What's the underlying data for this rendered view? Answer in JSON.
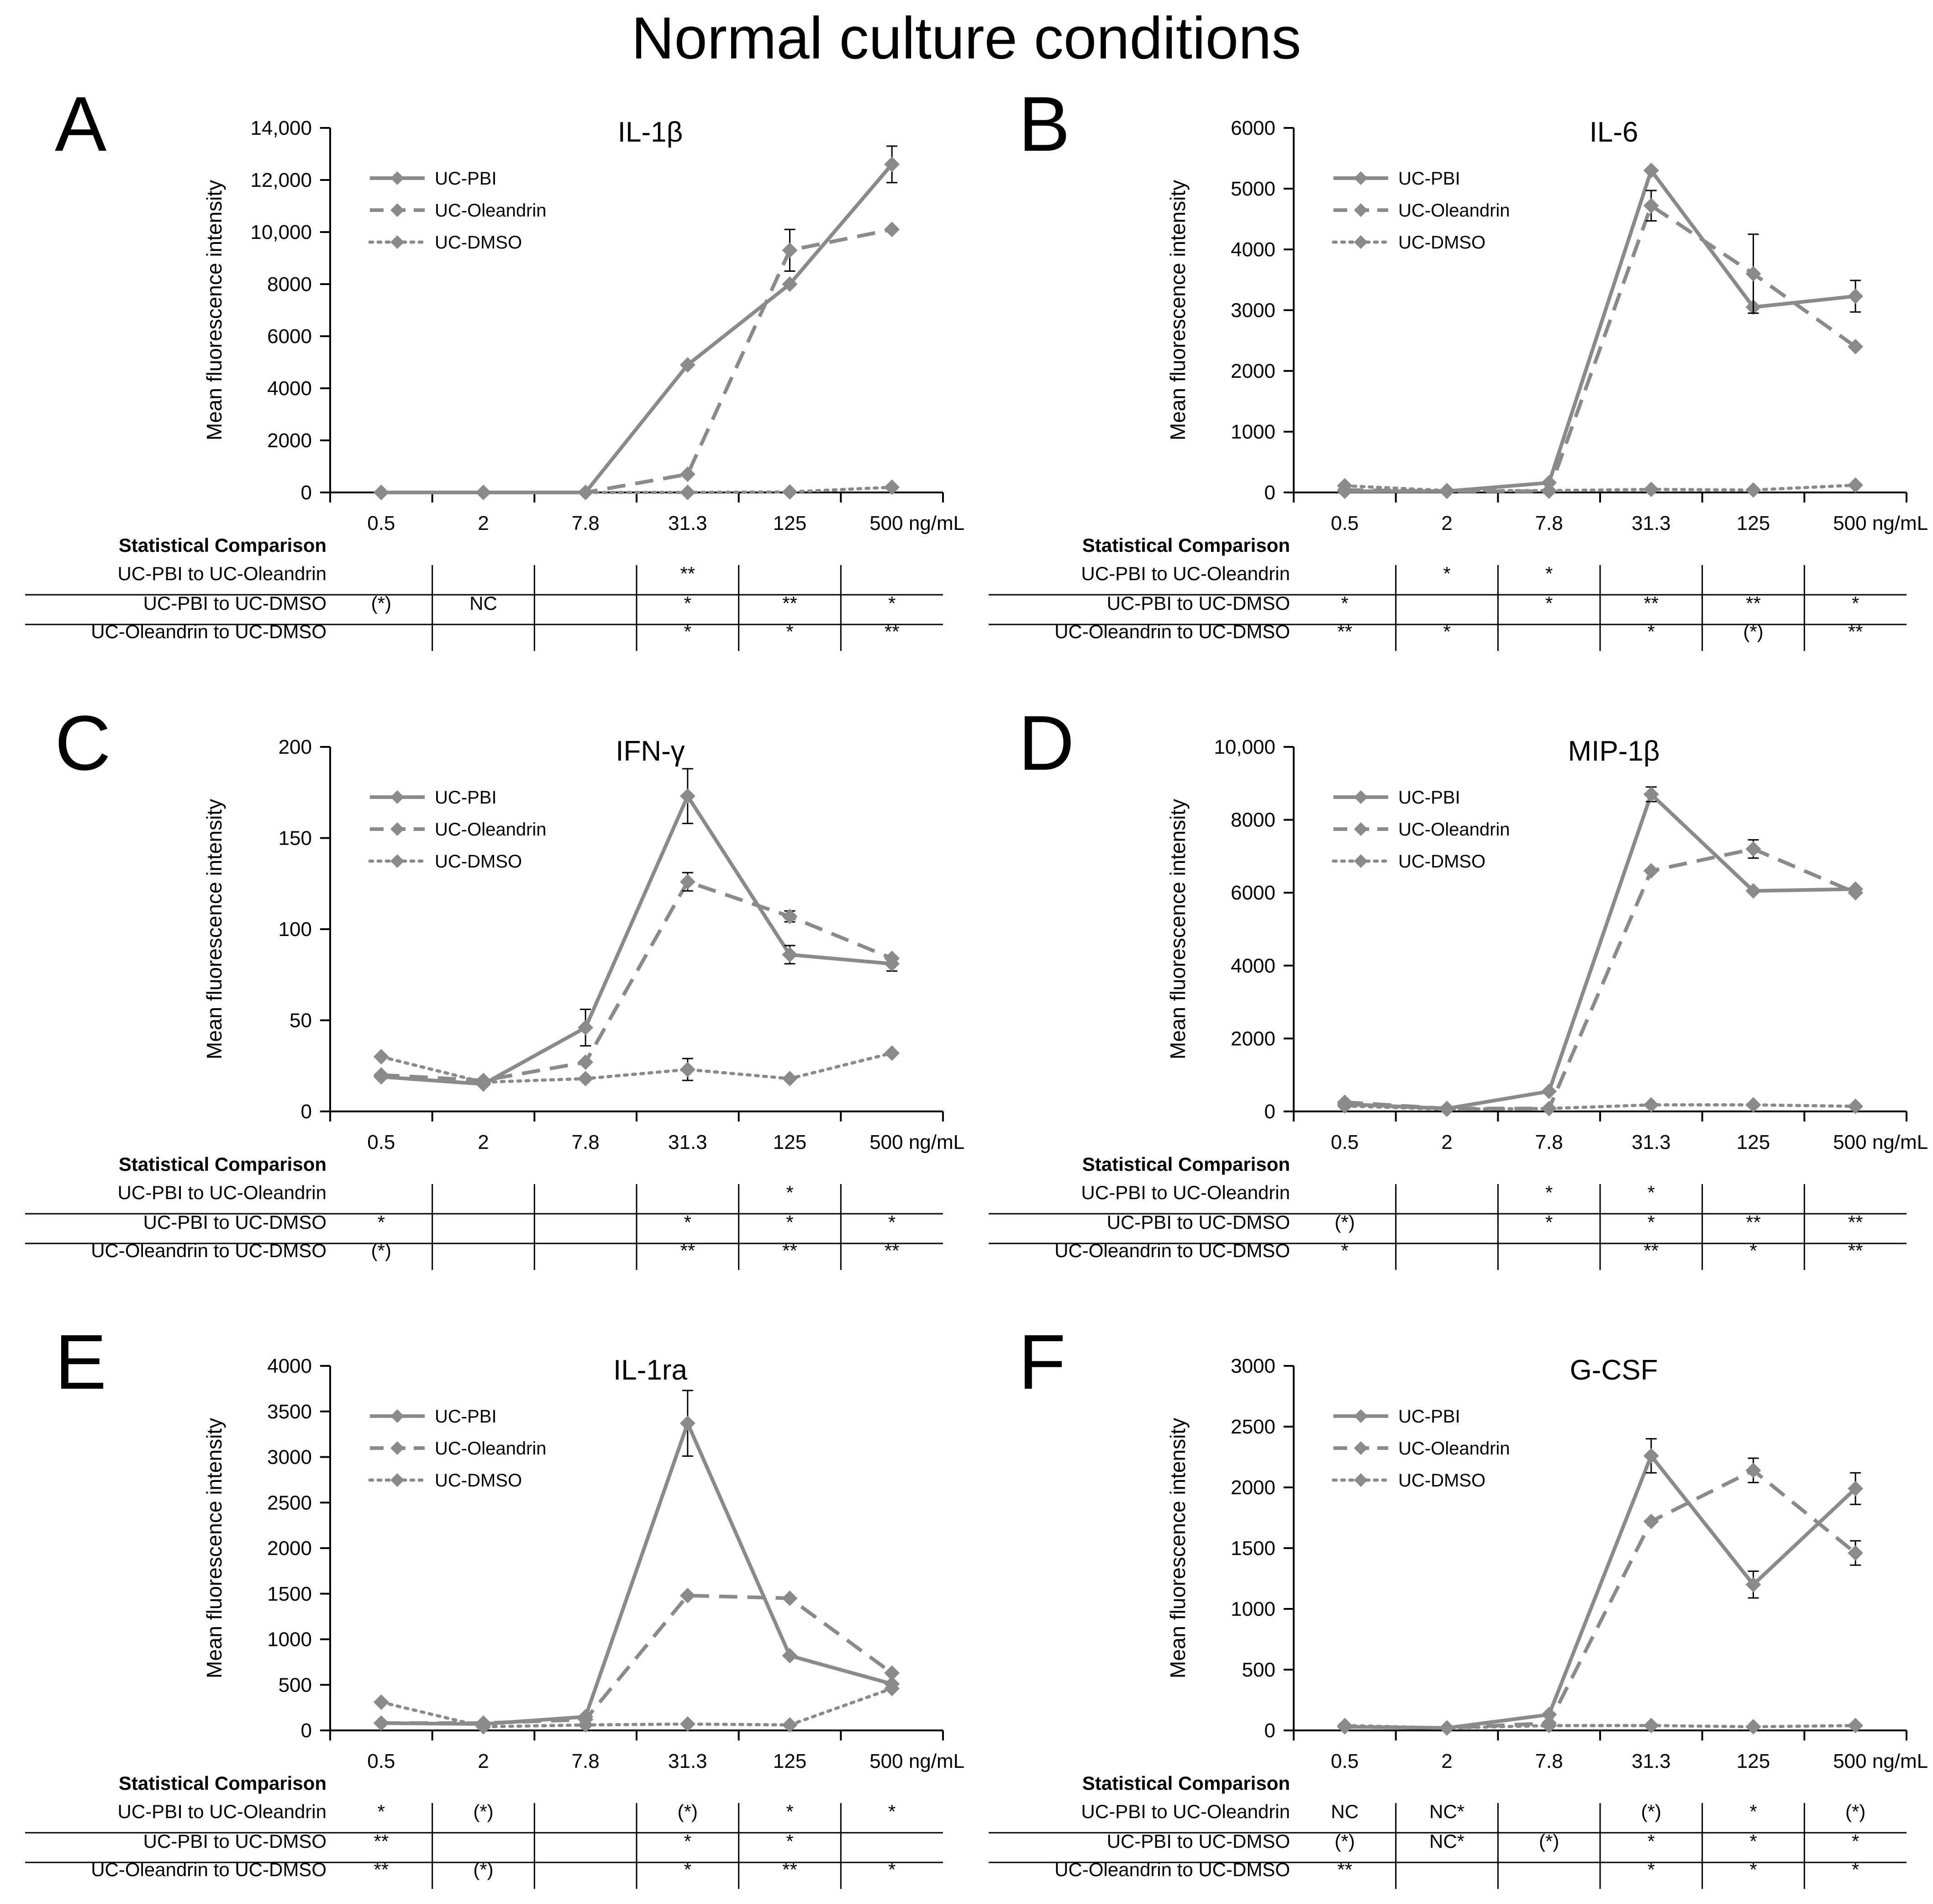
{
  "main_title": "Normal culture conditions",
  "ylabel": "Mean fluorescence intensity",
  "stat_heading": "Statistical Comparison",
  "comparisons": [
    "UC-PBI to UC-Oleandrin",
    "UC-PBI to UC-DMSO",
    "UC-Oleandrin to UC-DMSO"
  ],
  "legend": [
    "UC-PBI",
    "UC-Oleandrin",
    "UC-DMSO"
  ],
  "colors": {
    "series": "#8a8a8a",
    "axis": "#000000"
  },
  "chart_data": [
    {
      "panel": "A",
      "type": "line",
      "title": "IL-1β",
      "categories": [
        "0.5",
        "2",
        "7.8",
        "31.3",
        "125",
        "500 ng/mL"
      ],
      "x": [
        0.5,
        2,
        7.8,
        31.3,
        125,
        500
      ],
      "ylim": [
        0,
        14000
      ],
      "yticks": [
        "0",
        "2000",
        "4000",
        "6000",
        "8000",
        "10,000",
        "12,000",
        "14,000"
      ],
      "series": [
        {
          "name": "UC-PBI",
          "values": [
            0,
            0,
            0,
            4900,
            8000,
            12600
          ],
          "err": [
            0,
            0,
            0,
            0,
            0,
            700
          ]
        },
        {
          "name": "UC-Oleandrin",
          "values": [
            0,
            0,
            0,
            700,
            9300,
            10100
          ],
          "err": [
            0,
            0,
            0,
            0,
            800,
            0
          ]
        },
        {
          "name": "UC-DMSO",
          "values": [
            0,
            0,
            0,
            0,
            20,
            200
          ],
          "err": [
            0,
            0,
            0,
            0,
            0,
            0
          ]
        }
      ],
      "stats": [
        [
          "",
          "",
          "",
          "**",
          "",
          ""
        ],
        [
          "(*)",
          "NC",
          "",
          "*",
          "**",
          "*"
        ],
        [
          "",
          "",
          "",
          "*",
          "*",
          "**"
        ]
      ]
    },
    {
      "panel": "B",
      "type": "line",
      "title": "IL-6",
      "categories": [
        "0.5",
        "2",
        "7.8",
        "31.3",
        "125",
        "500 ng/mL"
      ],
      "x": [
        0.5,
        2,
        7.8,
        31.3,
        125,
        500
      ],
      "ylim": [
        0,
        6000
      ],
      "yticks": [
        "0",
        "1000",
        "2000",
        "3000",
        "4000",
        "5000",
        "6000"
      ],
      "series": [
        {
          "name": "UC-PBI",
          "values": [
            20,
            20,
            160,
            5300,
            3050,
            3230
          ],
          "err": [
            0,
            0,
            0,
            0,
            0,
            260
          ]
        },
        {
          "name": "UC-Oleandrin",
          "values": [
            40,
            20,
            20,
            4720,
            3600,
            2400
          ],
          "err": [
            0,
            0,
            0,
            250,
            650,
            0
          ]
        },
        {
          "name": "UC-DMSO",
          "values": [
            110,
            30,
            30,
            50,
            40,
            120
          ],
          "err": [
            0,
            0,
            0,
            0,
            0,
            0
          ]
        }
      ],
      "stats": [
        [
          "",
          "*",
          "*",
          "",
          "",
          ""
        ],
        [
          "*",
          "",
          "*",
          "**",
          "**",
          "*"
        ],
        [
          "**",
          "*",
          "",
          "*",
          "(*)",
          "**"
        ]
      ]
    },
    {
      "panel": "C",
      "type": "line",
      "title": "IFN-γ",
      "categories": [
        "0.5",
        "2",
        "7.8",
        "31.3",
        "125",
        "500 ng/mL"
      ],
      "x": [
        0.5,
        2,
        7.8,
        31.3,
        125,
        500
      ],
      "ylim": [
        0,
        200
      ],
      "yticks": [
        "0",
        "50",
        "100",
        "150",
        "200"
      ],
      "series": [
        {
          "name": "UC-PBI",
          "values": [
            19,
            15,
            46,
            173,
            86,
            81
          ],
          "err": [
            0,
            0,
            10,
            15,
            5,
            4
          ]
        },
        {
          "name": "UC-Oleandrin",
          "values": [
            20,
            17,
            27,
            126,
            107,
            84
          ],
          "err": [
            0,
            0,
            0,
            5,
            3,
            0
          ]
        },
        {
          "name": "UC-DMSO",
          "values": [
            30,
            16,
            18,
            23,
            18,
            32
          ],
          "err": [
            0,
            0,
            0,
            6,
            0,
            0
          ]
        }
      ],
      "stats": [
        [
          "",
          "",
          "",
          "",
          "*",
          ""
        ],
        [
          "*",
          "",
          "",
          "*",
          "*",
          "*"
        ],
        [
          "(*)",
          "",
          "",
          "**",
          "**",
          "**"
        ]
      ]
    },
    {
      "panel": "D",
      "type": "line",
      "title": "MIP-1β",
      "categories": [
        "0.5",
        "2",
        "7.8",
        "31.3",
        "125",
        "500 ng/mL"
      ],
      "x": [
        0.5,
        2,
        7.8,
        31.3,
        125,
        500
      ],
      "ylim": [
        0,
        10000
      ],
      "yticks": [
        "0",
        "2000",
        "4000",
        "6000",
        "8000",
        "10,000"
      ],
      "series": [
        {
          "name": "UC-PBI",
          "values": [
            200,
            80,
            550,
            8700,
            6050,
            6100
          ],
          "err": [
            0,
            0,
            0,
            200,
            0,
            0
          ]
        },
        {
          "name": "UC-Oleandrin",
          "values": [
            250,
            80,
            80,
            6600,
            7200,
            6000
          ],
          "err": [
            0,
            0,
            0,
            0,
            250,
            0
          ]
        },
        {
          "name": "UC-DMSO",
          "values": [
            150,
            60,
            80,
            180,
            180,
            140
          ],
          "err": [
            0,
            0,
            0,
            0,
            0,
            0
          ]
        }
      ],
      "stats": [
        [
          "",
          "",
          "*",
          "*",
          "",
          ""
        ],
        [
          "(*)",
          "",
          "*",
          "*",
          "**",
          "**"
        ],
        [
          "*",
          "",
          "",
          "**",
          "*",
          "**"
        ]
      ]
    },
    {
      "panel": "E",
      "type": "line",
      "title": "IL-1ra",
      "categories": [
        "0.5",
        "2",
        "7.8",
        "31.3",
        "125",
        "500 ng/mL"
      ],
      "x": [
        0.5,
        2,
        7.8,
        31.3,
        125,
        500
      ],
      "ylim": [
        0,
        4000
      ],
      "yticks": [
        "0",
        "500",
        "1000",
        "1500",
        "2000",
        "2500",
        "3000",
        "3500",
        "4000"
      ],
      "series": [
        {
          "name": "UC-PBI",
          "values": [
            80,
            70,
            150,
            3370,
            820,
            510
          ],
          "err": [
            0,
            0,
            0,
            360,
            0,
            0
          ]
        },
        {
          "name": "UC-Oleandrin",
          "values": [
            80,
            80,
            120,
            1480,
            1450,
            630
          ],
          "err": [
            0,
            0,
            0,
            0,
            0,
            0
          ]
        },
        {
          "name": "UC-DMSO",
          "values": [
            310,
            40,
            60,
            70,
            60,
            460
          ],
          "err": [
            0,
            0,
            0,
            0,
            0,
            0
          ]
        }
      ],
      "stats": [
        [
          "*",
          "(*)",
          "",
          "(*)",
          "*",
          "*"
        ],
        [
          "**",
          "",
          "",
          "*",
          "*",
          ""
        ],
        [
          "**",
          "(*)",
          "",
          "*",
          "**",
          "*"
        ]
      ]
    },
    {
      "panel": "F",
      "type": "line",
      "title": "G-CSF",
      "categories": [
        "0.5",
        "2",
        "7.8",
        "31.3",
        "125",
        "500 ng/mL"
      ],
      "x": [
        0.5,
        2,
        7.8,
        31.3,
        125,
        500
      ],
      "ylim": [
        0,
        3000
      ],
      "yticks": [
        "0",
        "500",
        "1000",
        "1500",
        "2000",
        "2500",
        "3000"
      ],
      "series": [
        {
          "name": "UC-PBI",
          "values": [
            30,
            20,
            130,
            2260,
            1200,
            1990
          ],
          "err": [
            0,
            0,
            0,
            140,
            110,
            130
          ]
        },
        {
          "name": "UC-Oleandrin",
          "values": [
            30,
            20,
            60,
            1720,
            2140,
            1460
          ],
          "err": [
            0,
            0,
            0,
            0,
            100,
            100
          ]
        },
        {
          "name": "UC-DMSO",
          "values": [
            40,
            20,
            40,
            40,
            30,
            40
          ],
          "err": [
            0,
            0,
            0,
            0,
            0,
            0
          ]
        }
      ],
      "stats": [
        [
          "NC",
          "NC*",
          "",
          "(*)",
          "*",
          "(*)"
        ],
        [
          "(*)",
          "NC*",
          "(*)",
          "*",
          "*",
          "*"
        ],
        [
          "**",
          "",
          "",
          "*",
          "*",
          "*"
        ]
      ]
    }
  ]
}
